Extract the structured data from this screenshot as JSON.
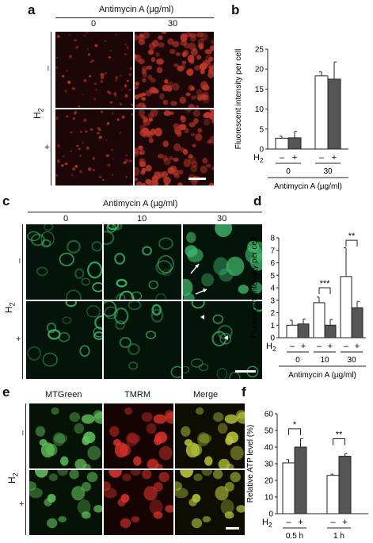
{
  "panels": {
    "a": "a",
    "b": "b",
    "c": "c",
    "d": "d",
    "e": "e",
    "f": "f"
  },
  "panel_a": {
    "header": "Antimycin A (µg/ml)",
    "col_labels": [
      "0",
      "30"
    ],
    "row_axis_label": "H",
    "row_axis_sub": "2",
    "row_labels": [
      "–",
      "+"
    ]
  },
  "panel_c": {
    "header": "Antimycin A (µg/ml)",
    "col_labels": [
      "0",
      "10",
      "30"
    ],
    "row_axis_label": "H",
    "row_axis_sub": "2",
    "row_labels": [
      "–",
      "+"
    ]
  },
  "panel_e": {
    "col_labels": [
      "MTGreen",
      "TMRM",
      "Merge"
    ],
    "col_colors": [
      "#2a9a2a",
      "#d8232a",
      "#222222"
    ],
    "row_axis_label": "H",
    "row_axis_sub": "2",
    "row_labels": [
      "–",
      "+"
    ]
  },
  "colors": {
    "white_bar": "#ffffff",
    "gray_bar": "#555555",
    "red_cells": "#c0392b",
    "green_cells": "#3fb86a",
    "red_bg": "#1d0608",
    "green_bg": "#04140a"
  },
  "chart_data": [
    {
      "id": "b",
      "type": "bar",
      "ylabel": "Fluorescent intensity per cell",
      "ylim": [
        0,
        25
      ],
      "yticks": [
        0,
        5,
        10,
        15,
        20,
        25
      ],
      "h2_label": "H",
      "h2_sub": "2",
      "h2_signs": [
        "–",
        "+",
        "–",
        "+"
      ],
      "group_labels": [
        "0",
        "30"
      ],
      "xlabel": "Antimycin A (µg/ml)",
      "values": [
        2.7,
        2.8,
        18.3,
        17.5
      ],
      "errors": [
        0.5,
        1.6,
        1.0,
        4.3
      ],
      "fills": [
        "white",
        "gray",
        "white",
        "gray"
      ],
      "significance": []
    },
    {
      "id": "d",
      "type": "bar",
      "ylabel": "Fluorescent intensity per cell",
      "ylim": [
        0,
        8
      ],
      "yticks": [
        0,
        1,
        2,
        3,
        4,
        5,
        6,
        7,
        8
      ],
      "h2_label": "H",
      "h2_sub": "2",
      "h2_signs": [
        "–",
        "+",
        "–",
        "+",
        "–",
        "+"
      ],
      "group_labels": [
        "0",
        "10",
        "30"
      ],
      "xlabel": "Antimycin A (µg/ml)",
      "values": [
        1.0,
        1.1,
        2.8,
        1.0,
        4.9,
        2.4
      ],
      "errors": [
        0.4,
        0.4,
        0.45,
        0.45,
        2.3,
        0.5
      ],
      "fills": [
        "white",
        "gray",
        "white",
        "gray",
        "white",
        "gray"
      ],
      "significance": [
        {
          "bars": [
            2,
            3
          ],
          "label": "***",
          "y": 4.0
        },
        {
          "bars": [
            4,
            5
          ],
          "label": "**",
          "y": 7.8
        }
      ]
    },
    {
      "id": "f",
      "type": "bar",
      "ylabel": "Relative ATP level (%)",
      "ylim": [
        0,
        60
      ],
      "yticks": [
        0,
        10,
        20,
        30,
        40,
        50,
        60
      ],
      "h2_label": "H",
      "h2_sub": "2",
      "h2_signs": [
        "–",
        "+",
        "–",
        "+"
      ],
      "group_labels": [
        "0.5 h",
        "1 h"
      ],
      "xlabel": "",
      "values": [
        30.5,
        40.0,
        23.0,
        34.5
      ],
      "errors": [
        2.0,
        5.0,
        0.8,
        1.5
      ],
      "fills": [
        "white",
        "gray",
        "white",
        "gray"
      ],
      "significance": [
        {
          "bars": [
            0,
            1
          ],
          "label": "*",
          "y": 51
        },
        {
          "bars": [
            2,
            3
          ],
          "label": "**",
          "y": 45
        }
      ]
    }
  ]
}
